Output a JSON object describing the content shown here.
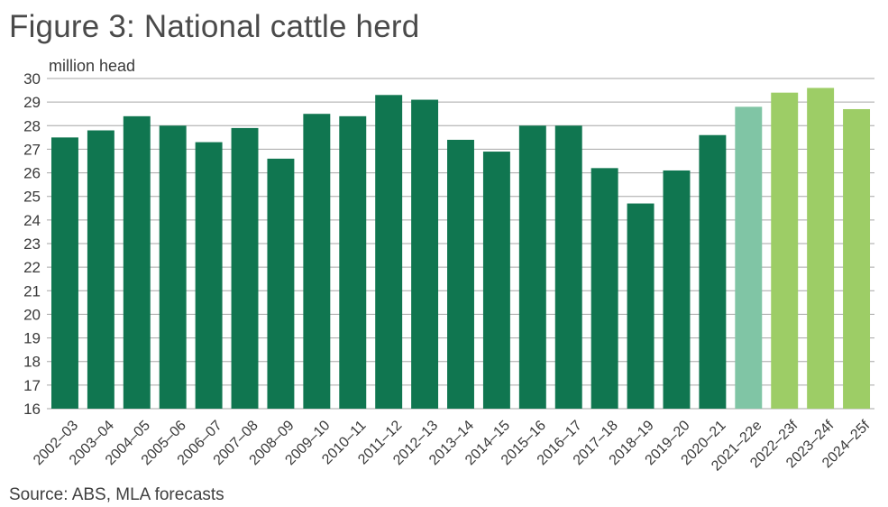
{
  "title": "Figure 3: National cattle herd",
  "source": "Source: ABS, MLA forecasts",
  "colors": {
    "actual": "#107650",
    "estimate": "#80c5a5",
    "forecast": "#9dcd66",
    "grid": "#a6a6a6"
  },
  "chart_data": {
    "type": "bar",
    "title": "Figure 3: National cattle herd",
    "ylabel": "million head",
    "xlabel": "",
    "ylim": [
      16,
      30
    ],
    "yticks": [
      16,
      17,
      18,
      19,
      20,
      21,
      22,
      23,
      24,
      25,
      26,
      27,
      28,
      29,
      30
    ],
    "grid": true,
    "categories": [
      "2002–03",
      "2003–04",
      "2004–05",
      "2005–06",
      "2006–07",
      "2007–08",
      "2008–09",
      "2009–10",
      "2010–11",
      "2011–12",
      "2012–13",
      "2013–14",
      "2014–15",
      "2015–16",
      "2016–17",
      "2017–18",
      "2018–19",
      "2019–20",
      "2020–21",
      "2021–22e",
      "2022–23f",
      "2023–24f",
      "2024–25f"
    ],
    "values": [
      27.5,
      27.8,
      28.4,
      28.0,
      27.3,
      27.9,
      26.6,
      28.5,
      28.4,
      29.3,
      29.1,
      27.4,
      26.9,
      28.0,
      28.0,
      26.2,
      24.7,
      26.1,
      27.6,
      28.8,
      29.4,
      29.6,
      28.7
    ],
    "bar_types": [
      "actual",
      "actual",
      "actual",
      "actual",
      "actual",
      "actual",
      "actual",
      "actual",
      "actual",
      "actual",
      "actual",
      "actual",
      "actual",
      "actual",
      "actual",
      "actual",
      "actual",
      "actual",
      "actual",
      "estimate",
      "forecast",
      "forecast",
      "forecast"
    ]
  }
}
